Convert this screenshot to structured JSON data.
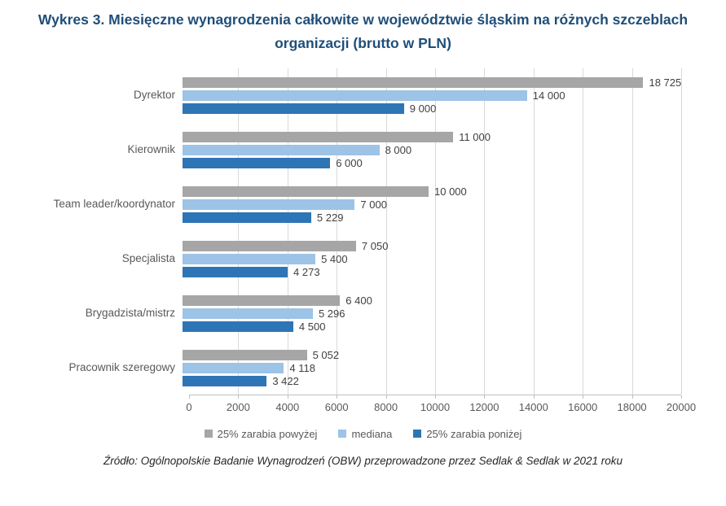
{
  "title": "Wykres 3. Miesięczne wynagrodzenia całkowite w województwie śląskim na różnych szczeblach organizacji (brutto w PLN)",
  "source": "Źródło: Ogólnopolskie Badanie Wynagrodzeń (OBW) przeprowadzone przez Sedlak & Sedlak w 2021 roku",
  "chart_data": {
    "type": "bar",
    "orientation": "horizontal",
    "title": "Wykres 3. Miesięczne wynagrodzenia całkowite w województwie śląskim na różnych szczeblach organizacji (brutto w PLN)",
    "categories": [
      "Dyrektor",
      "Kierownik",
      "Team leader/koordynator",
      "Specjalista",
      "Brygadzista/mistrz",
      "Pracownik szeregowy"
    ],
    "series": [
      {
        "name": "25% zarabia powyżej",
        "color": "#A6A6A6",
        "values": [
          18725,
          11000,
          10000,
          7050,
          6400,
          5052
        ]
      },
      {
        "name": "mediana",
        "color": "#9DC3E6",
        "values": [
          14000,
          8000,
          7000,
          5400,
          5296,
          4118
        ]
      },
      {
        "name": "25% zarabia poniżej",
        "color": "#2E75B6",
        "values": [
          9000,
          6000,
          5229,
          4273,
          4500,
          3422
        ]
      }
    ],
    "xlim": [
      0,
      20000
    ],
    "xticks": [
      0,
      2000,
      4000,
      6000,
      8000,
      10000,
      12000,
      14000,
      16000,
      18000,
      20000
    ],
    "grid": true,
    "legend_position": "bottom",
    "colors": {
      "title": "#1F4E79",
      "gridline": "#D9D9D9",
      "axis": "#BFBFBF",
      "category_label": "#595959",
      "value_label": "#404040"
    }
  }
}
